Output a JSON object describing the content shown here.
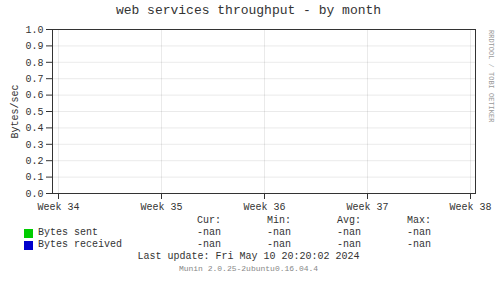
{
  "chart_data": {
    "type": "line",
    "title": "web services throughput - by month",
    "ylabel": "Bytes/sec",
    "categories": [
      "Week 34",
      "Week 35",
      "Week 36",
      "Week 37",
      "Week 38"
    ],
    "series": [
      {
        "name": "Bytes sent",
        "color": "#00cc00",
        "values": [
          null,
          null,
          null,
          null,
          null
        ],
        "cur": "-nan",
        "min": "-nan",
        "avg": "-nan",
        "max": "-nan"
      },
      {
        "name": "Bytes received",
        "color": "#0000cc",
        "values": [
          null,
          null,
          null,
          null,
          null
        ],
        "cur": "-nan",
        "min": "-nan",
        "avg": "-nan",
        "max": "-nan"
      }
    ],
    "stat_headers": [
      "Cur:",
      "Min:",
      "Avg:",
      "Max:"
    ],
    "ylim": [
      0.0,
      1.0
    ],
    "yticks": [
      {
        "value": 0.0,
        "label": "0.0"
      },
      0.1,
      0.2,
      0.3,
      0.4,
      0.5,
      0.6,
      0.7,
      0.8,
      0.9,
      {
        "value": 1.0,
        "label": "1.0"
      }
    ],
    "grid": true,
    "legend": "bottom",
    "annotations": [
      "Last update:  Fri May 10 20:20:02 2024",
      "Munin 2.0.25-2ubuntu0.16.04.4",
      "RRDTOOL / TOBI OETIKER"
    ]
  }
}
